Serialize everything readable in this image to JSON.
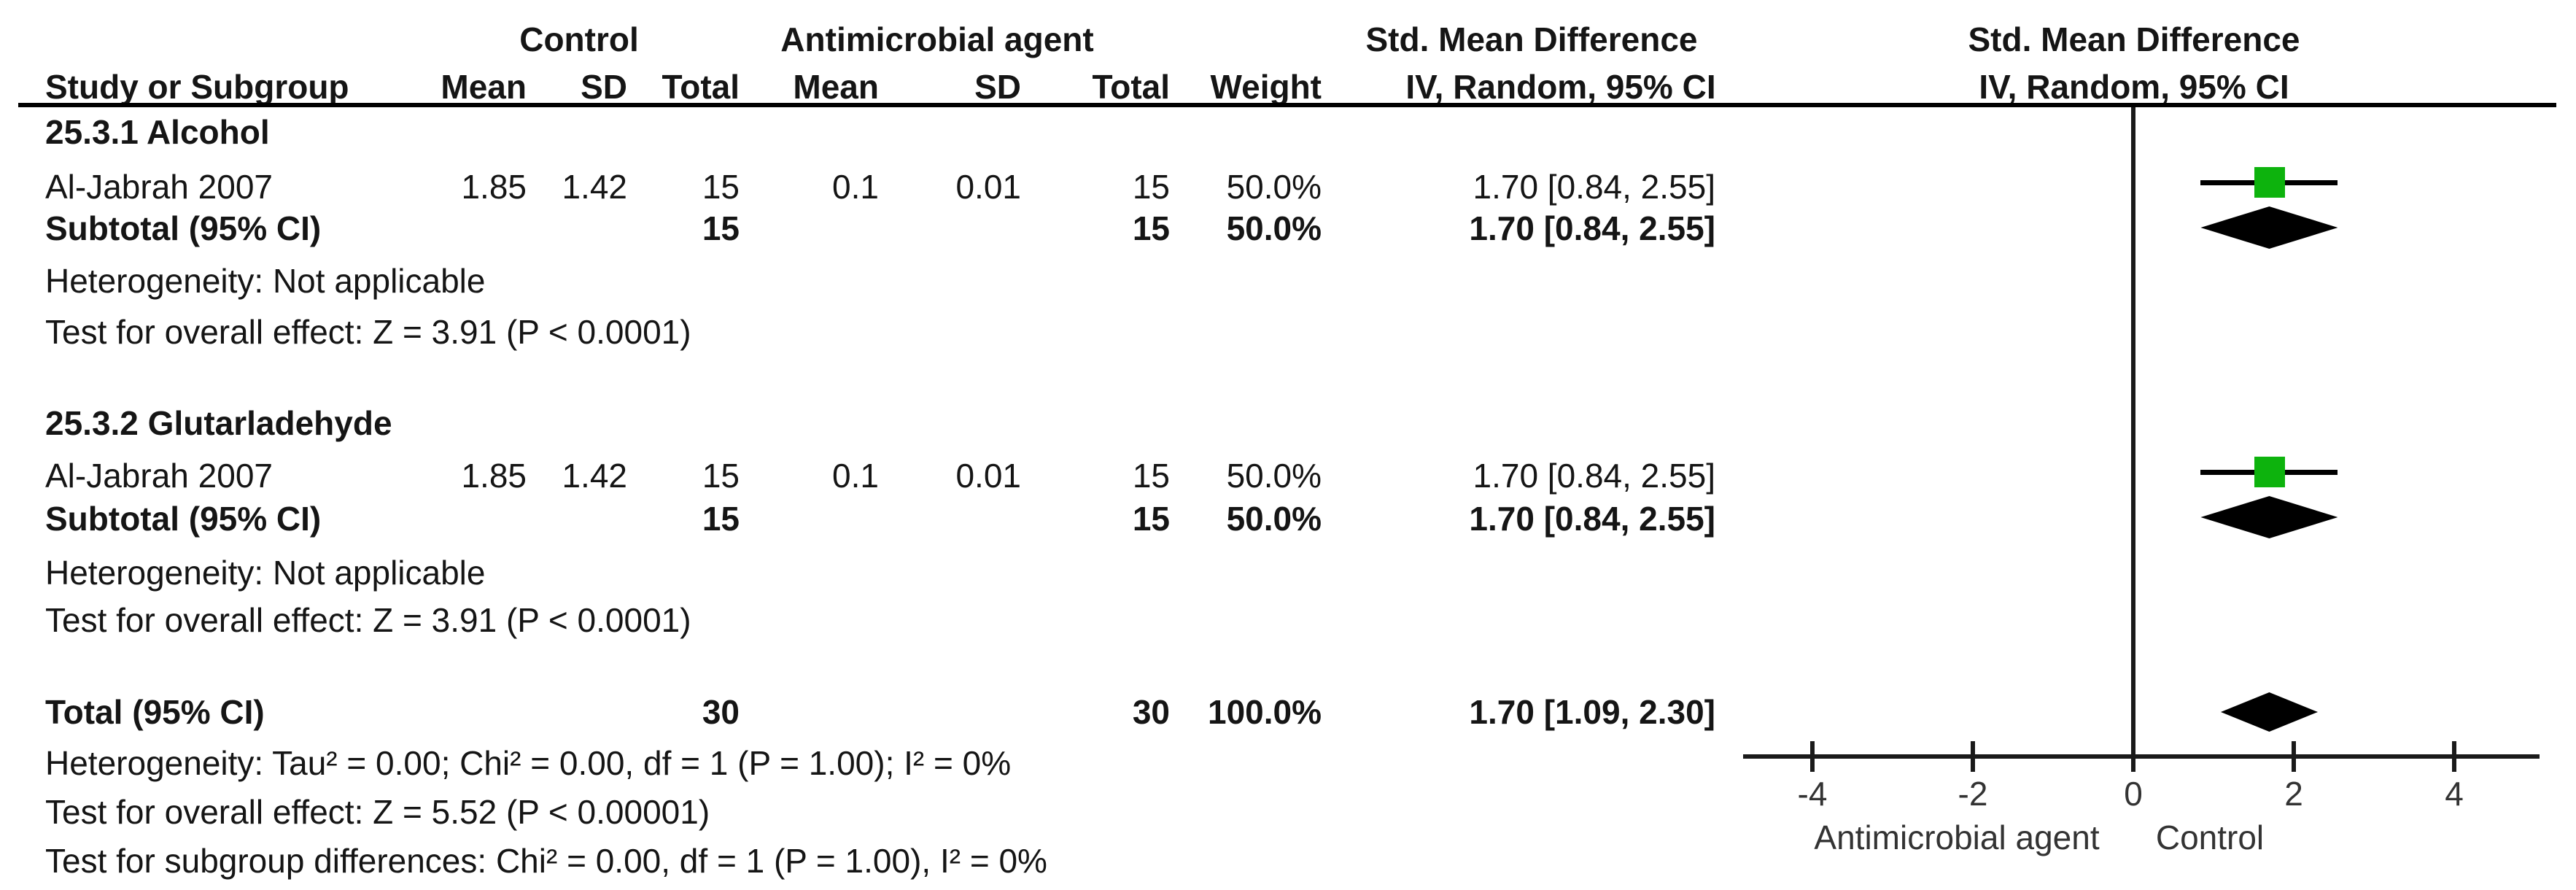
{
  "table": {
    "group_headers": {
      "control": "Control",
      "treatment": "Antimicrobial agent",
      "smd_left": "Std. Mean Difference",
      "smd_right": "Std. Mean Difference"
    },
    "columns": {
      "study": "Study or Subgroup",
      "mean_c": "Mean",
      "sd_c": "SD",
      "total_c": "Total",
      "mean_t": "Mean",
      "sd_t": "SD",
      "total_t": "Total",
      "weight": "Weight",
      "ci_left": "IV, Random, 95% CI",
      "ci_right": "IV, Random, 95% CI"
    },
    "sections": [
      {
        "title": "25.3.1 Alcohol",
        "study": {
          "label": "Al-Jabrah 2007",
          "mean_c": "1.85",
          "sd_c": "1.42",
          "total_c": "15",
          "mean_t": "0.1",
          "sd_t": "0.01",
          "total_t": "15",
          "weight": "50.0%",
          "ci": "1.70 [0.84, 2.55]"
        },
        "subtotal": {
          "label": "Subtotal (95% CI)",
          "total_c": "15",
          "total_t": "15",
          "weight": "50.0%",
          "ci": "1.70 [0.84, 2.55]"
        },
        "heterogeneity": "Heterogeneity: Not applicable",
        "overall_effect": "Test for overall effect: Z = 3.91 (P < 0.0001)"
      },
      {
        "title": "25.3.2 Glutarladehyde",
        "study": {
          "label": "Al-Jabrah 2007",
          "mean_c": "1.85",
          "sd_c": "1.42",
          "total_c": "15",
          "mean_t": "0.1",
          "sd_t": "0.01",
          "total_t": "15",
          "weight": "50.0%",
          "ci": "1.70 [0.84, 2.55]"
        },
        "subtotal": {
          "label": "Subtotal (95% CI)",
          "total_c": "15",
          "total_t": "15",
          "weight": "50.0%",
          "ci": "1.70 [0.84, 2.55]"
        },
        "heterogeneity": "Heterogeneity: Not applicable",
        "overall_effect": "Test for overall effect: Z = 3.91 (P < 0.0001)"
      }
    ],
    "total_row": {
      "label": "Total (95% CI)",
      "total_c": "30",
      "total_t": "30",
      "weight": "100.0%",
      "ci": "1.70 [1.09, 2.30]"
    },
    "footer": {
      "heterogeneity": "Heterogeneity: Tau² = 0.00; Chi² = 0.00, df = 1 (P = 1.00); I² = 0%",
      "overall_effect": "Test for overall effect: Z = 5.52 (P < 0.00001)",
      "subgroup_differences": "Test for subgroup differences: Chi² = 0.00, df = 1 (P = 1.00), I² = 0%"
    }
  },
  "chart_data": {
    "type": "forest",
    "effect_measure": "Std. Mean Difference, IV, Random, 95% CI",
    "xticks": [
      -4,
      -2,
      0,
      2,
      4
    ],
    "xlim": [
      -4.9,
      5.1
    ],
    "null_line": 0,
    "x_axis_left_label": "Antimicrobial agent",
    "x_axis_right_label": "Control",
    "square_color": "#0db30d",
    "diamond_color": "#000000",
    "line_color": "#000000",
    "groups": [
      {
        "name": "25.3.1 Alcohol",
        "studies": [
          {
            "label": "Al-Jabrah 2007",
            "est": 1.7,
            "lo": 0.84,
            "hi": 2.55,
            "weight_pct": 50.0
          }
        ],
        "subtotal": {
          "est": 1.7,
          "lo": 0.84,
          "hi": 2.55
        }
      },
      {
        "name": "25.3.2 Glutarladehyde",
        "studies": [
          {
            "label": "Al-Jabrah 2007",
            "est": 1.7,
            "lo": 0.84,
            "hi": 2.55,
            "weight_pct": 50.0
          }
        ],
        "subtotal": {
          "est": 1.7,
          "lo": 0.84,
          "hi": 2.55
        }
      }
    ],
    "total": {
      "est": 1.7,
      "lo": 1.09,
      "hi": 2.3,
      "weight_pct": 100.0
    }
  }
}
